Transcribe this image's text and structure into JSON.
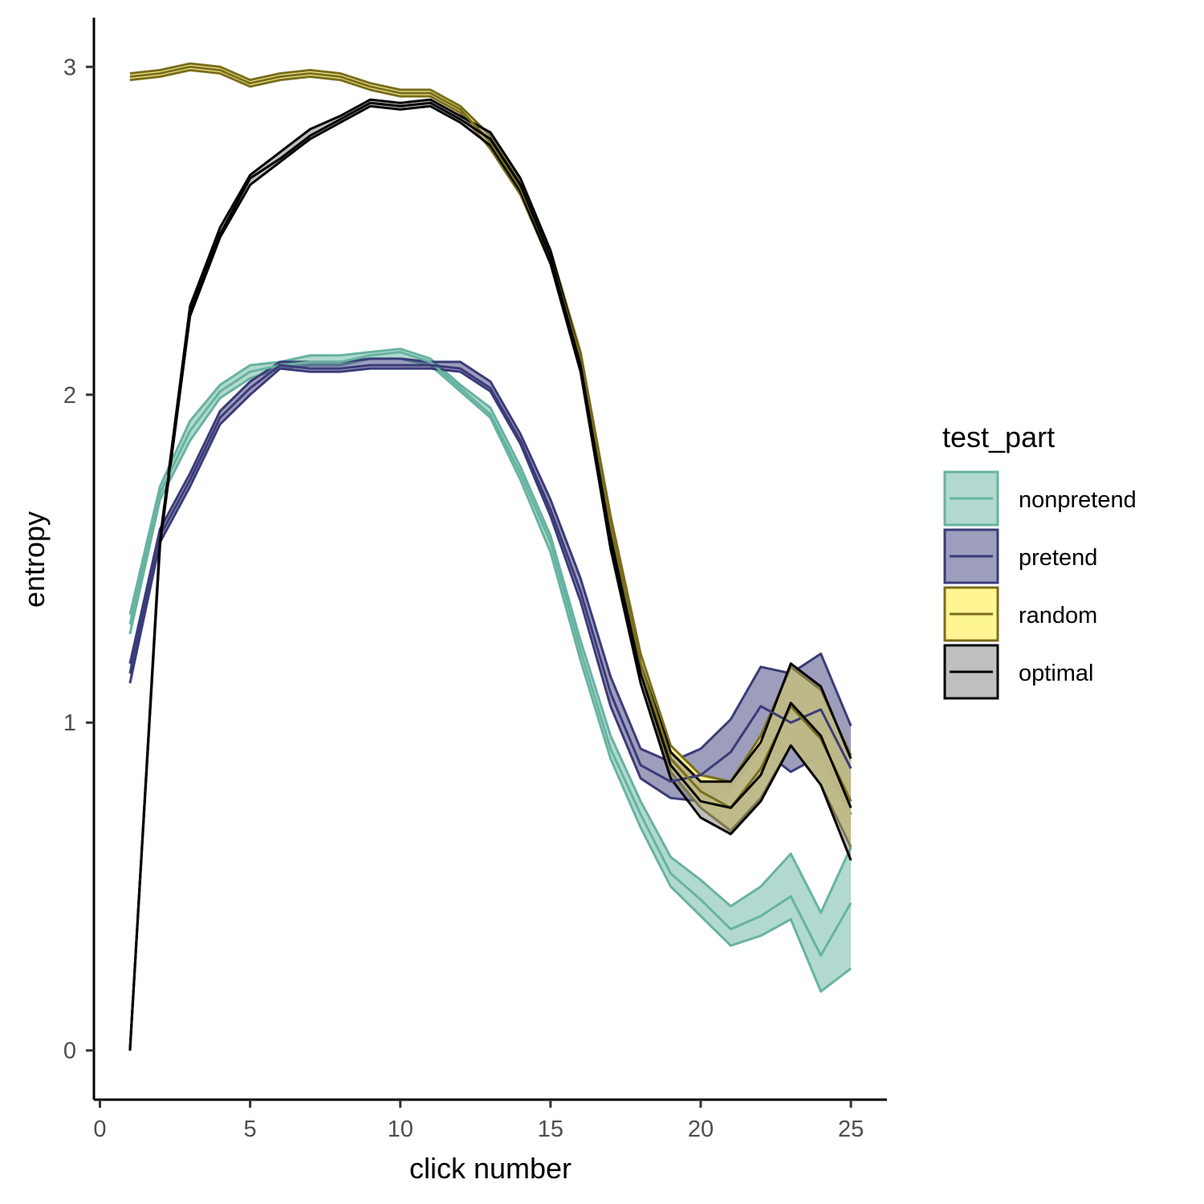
{
  "chart_data": {
    "type": "line",
    "title": "",
    "xlabel": "click number",
    "ylabel": "entropy",
    "xlim": [
      -0.2,
      26.2
    ],
    "ylim": [
      -0.15,
      3.15
    ],
    "xticks": [
      0,
      5,
      10,
      15,
      20,
      25
    ],
    "yticks": [
      0,
      1,
      2,
      3
    ],
    "grid": false,
    "legend": {
      "title": "test_part",
      "position": "right"
    },
    "x": [
      1,
      2,
      3,
      4,
      5,
      6,
      7,
      8,
      9,
      10,
      11,
      12,
      13,
      14,
      15,
      16,
      17,
      18,
      19,
      20,
      21,
      22,
      23,
      24,
      25
    ],
    "series": [
      {
        "name": "nonpretend",
        "color": "#66b3a0",
        "fill": "#66b3a0",
        "fill_opacity": 0.5,
        "mean": [
          1.3,
          1.7,
          1.89,
          2.01,
          2.07,
          2.09,
          2.1,
          2.1,
          2.12,
          2.13,
          2.1,
          2.02,
          1.94,
          1.76,
          1.55,
          1.22,
          0.92,
          0.72,
          0.54,
          0.46,
          0.37,
          0.41,
          0.47,
          0.29,
          0.45
        ],
        "lower": [
          1.27,
          1.68,
          1.86,
          1.99,
          2.05,
          2.08,
          2.09,
          2.09,
          2.11,
          2.11,
          2.09,
          2.01,
          1.93,
          1.74,
          1.52,
          1.19,
          0.89,
          0.68,
          0.5,
          0.41,
          0.32,
          0.35,
          0.4,
          0.18,
          0.25
        ],
        "upper": [
          1.33,
          1.72,
          1.92,
          2.03,
          2.09,
          2.1,
          2.12,
          2.12,
          2.13,
          2.14,
          2.11,
          2.03,
          1.96,
          1.78,
          1.57,
          1.25,
          0.96,
          0.76,
          0.59,
          0.52,
          0.44,
          0.5,
          0.6,
          0.42,
          0.62
        ]
      },
      {
        "name": "pretend",
        "color": "#3b3b7a",
        "fill": "#3b3b7a",
        "fill_opacity": 0.5,
        "mean": [
          1.15,
          1.57,
          1.74,
          1.93,
          2.02,
          2.09,
          2.08,
          2.08,
          2.09,
          2.09,
          2.09,
          2.08,
          2.02,
          1.86,
          1.65,
          1.4,
          1.09,
          0.87,
          0.82,
          0.84,
          0.91,
          1.05,
          1.0,
          1.04,
          0.86
        ],
        "lower": [
          1.12,
          1.55,
          1.72,
          1.91,
          2.0,
          2.08,
          2.07,
          2.07,
          2.08,
          2.08,
          2.08,
          2.07,
          2.01,
          1.85,
          1.63,
          1.37,
          1.05,
          0.83,
          0.77,
          0.76,
          0.8,
          0.92,
          0.85,
          0.9,
          0.72
        ],
        "upper": [
          1.18,
          1.59,
          1.76,
          1.95,
          2.04,
          2.1,
          2.1,
          2.1,
          2.11,
          2.11,
          2.1,
          2.1,
          2.04,
          1.88,
          1.68,
          1.44,
          1.14,
          0.92,
          0.88,
          0.92,
          1.01,
          1.17,
          1.15,
          1.21,
          0.99
        ]
      },
      {
        "name": "random",
        "color": "#7a6e1e",
        "fill": "#fff48c",
        "fill_opacity": 0.95,
        "mean": [
          2.97,
          2.98,
          3.0,
          2.99,
          2.95,
          2.97,
          2.98,
          2.97,
          2.94,
          2.92,
          2.92,
          2.87,
          2.77,
          2.63,
          2.42,
          2.11,
          1.6,
          1.18,
          0.89,
          0.79,
          0.74,
          0.86,
          1.05,
          0.95,
          0.76
        ],
        "lower": [
          2.96,
          2.97,
          2.99,
          2.98,
          2.94,
          2.96,
          2.97,
          2.96,
          2.93,
          2.91,
          2.91,
          2.86,
          2.75,
          2.61,
          2.4,
          2.09,
          1.57,
          1.15,
          0.85,
          0.74,
          0.67,
          0.77,
          0.93,
          0.81,
          0.62
        ],
        "upper": [
          2.98,
          2.99,
          3.01,
          3.0,
          2.96,
          2.98,
          2.99,
          2.98,
          2.95,
          2.93,
          2.93,
          2.88,
          2.79,
          2.65,
          2.44,
          2.13,
          1.63,
          1.21,
          0.93,
          0.84,
          0.82,
          0.96,
          1.17,
          1.1,
          0.9
        ]
      },
      {
        "name": "optimal",
        "color": "#000000",
        "fill": "#808080",
        "fill_opacity": 0.5,
        "mean": [
          0.0,
          1.55,
          2.25,
          2.49,
          2.66,
          2.72,
          2.79,
          2.84,
          2.89,
          2.88,
          2.89,
          2.84,
          2.78,
          2.64,
          2.42,
          2.09,
          1.56,
          1.15,
          0.87,
          0.76,
          0.74,
          0.84,
          1.06,
          0.96,
          0.74
        ],
        "lower": [
          0.0,
          1.54,
          2.24,
          2.48,
          2.64,
          2.71,
          2.78,
          2.83,
          2.88,
          2.87,
          2.88,
          2.83,
          2.76,
          2.62,
          2.4,
          2.07,
          1.53,
          1.12,
          0.83,
          0.71,
          0.66,
          0.76,
          0.93,
          0.81,
          0.58
        ],
        "upper": [
          0.0,
          1.56,
          2.27,
          2.51,
          2.67,
          2.74,
          2.81,
          2.85,
          2.9,
          2.89,
          2.9,
          2.85,
          2.8,
          2.66,
          2.44,
          2.11,
          1.59,
          1.18,
          0.91,
          0.82,
          0.82,
          0.94,
          1.18,
          1.11,
          0.89
        ]
      }
    ]
  }
}
